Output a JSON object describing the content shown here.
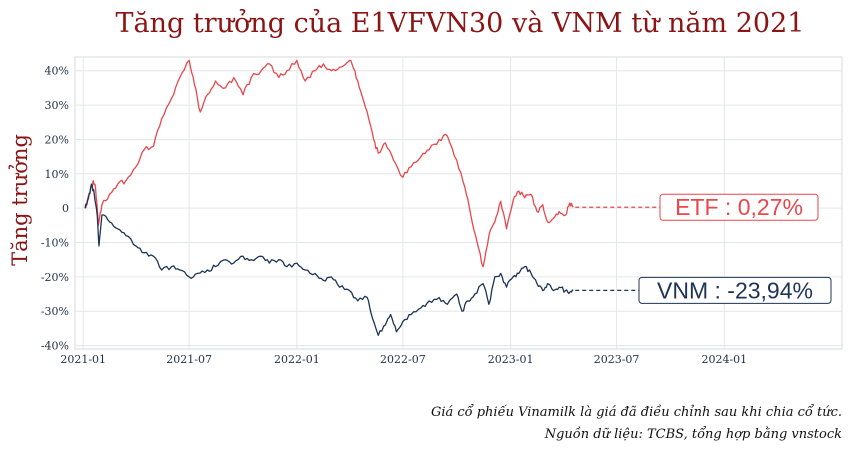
{
  "chart_data": {
    "type": "line",
    "title": "Tăng trưởng của E1VFVN30 và VNM từ năm 2021",
    "xlabel": "",
    "ylabel": "Tăng trưởng",
    "x_ticks": [
      "2021-01",
      "2021-07",
      "2022-01",
      "2022-07",
      "2023-01",
      "2023-07",
      "2024-01"
    ],
    "y_ticks": [
      "-40%",
      "-30%",
      "-20%",
      "-10%",
      "0",
      "10%",
      "20%",
      "30%",
      "40%"
    ],
    "y_tick_values": [
      -40,
      -30,
      -20,
      -10,
      0,
      10,
      20,
      30,
      40
    ],
    "ylim": [
      -41,
      44
    ],
    "xlim": [
      "2020-12-18",
      "2024-07-20"
    ],
    "grid": true,
    "series": [
      {
        "name": "ETF",
        "color": "#e8474b",
        "end_label": "ETF : 0,27%",
        "final_value": 0.27,
        "points": [
          [
            "2021-01-04",
            0
          ],
          [
            "2021-01-12",
            4
          ],
          [
            "2021-01-18",
            8
          ],
          [
            "2021-01-22",
            6
          ],
          [
            "2021-01-27",
            -5
          ],
          [
            "2021-02-02",
            1
          ],
          [
            "2021-02-15",
            4
          ],
          [
            "2021-03-01",
            7
          ],
          [
            "2021-03-15",
            8
          ],
          [
            "2021-04-01",
            12
          ],
          [
            "2021-04-15",
            17
          ],
          [
            "2021-05-01",
            18
          ],
          [
            "2021-05-15",
            26
          ],
          [
            "2021-06-01",
            32
          ],
          [
            "2021-06-15",
            38
          ],
          [
            "2021-07-01",
            43
          ],
          [
            "2021-07-10",
            36
          ],
          [
            "2021-07-20",
            28
          ],
          [
            "2021-08-01",
            33
          ],
          [
            "2021-08-15",
            37
          ],
          [
            "2021-09-01",
            35
          ],
          [
            "2021-09-15",
            38
          ],
          [
            "2021-10-01",
            33
          ],
          [
            "2021-10-15",
            38
          ],
          [
            "2021-11-01",
            40
          ],
          [
            "2021-11-15",
            42
          ],
          [
            "2021-12-01",
            38
          ],
          [
            "2021-12-15",
            40
          ],
          [
            "2022-01-01",
            43
          ],
          [
            "2022-01-15",
            37
          ],
          [
            "2022-02-01",
            40
          ],
          [
            "2022-02-15",
            42
          ],
          [
            "2022-03-01",
            40
          ],
          [
            "2022-03-15",
            41
          ],
          [
            "2022-04-01",
            43
          ],
          [
            "2022-04-10",
            40
          ],
          [
            "2022-04-20",
            34
          ],
          [
            "2022-05-01",
            28
          ],
          [
            "2022-05-12",
            20
          ],
          [
            "2022-05-20",
            16
          ],
          [
            "2022-06-01",
            19
          ],
          [
            "2022-06-15",
            14
          ],
          [
            "2022-07-01",
            9
          ],
          [
            "2022-07-15",
            12
          ],
          [
            "2022-08-01",
            15
          ],
          [
            "2022-08-15",
            17
          ],
          [
            "2022-09-01",
            20
          ],
          [
            "2022-09-15",
            21
          ],
          [
            "2022-10-01",
            14
          ],
          [
            "2022-10-15",
            6
          ],
          [
            "2022-10-25",
            -2
          ],
          [
            "2022-11-05",
            -10
          ],
          [
            "2022-11-15",
            -17
          ],
          [
            "2022-11-25",
            -8
          ],
          [
            "2022-12-05",
            -4
          ],
          [
            "2022-12-15",
            2
          ],
          [
            "2022-12-25",
            -6
          ],
          [
            "2023-01-05",
            2
          ],
          [
            "2023-01-15",
            5
          ],
          [
            "2023-01-25",
            3
          ],
          [
            "2023-02-05",
            4
          ],
          [
            "2023-02-15",
            -1
          ],
          [
            "2023-02-25",
            1
          ],
          [
            "2023-03-05",
            -4
          ],
          [
            "2023-03-15",
            -3
          ],
          [
            "2023-03-25",
            -1
          ],
          [
            "2023-04-05",
            -2
          ],
          [
            "2023-04-12",
            1.5
          ],
          [
            "2023-04-18",
            0.27
          ]
        ]
      },
      {
        "name": "VNM",
        "color": "#1d3455",
        "end_label": "VNM : -23,94%",
        "final_value": -23.94,
        "points": [
          [
            "2021-01-04",
            0
          ],
          [
            "2021-01-10",
            3
          ],
          [
            "2021-01-15",
            7
          ],
          [
            "2021-01-20",
            4
          ],
          [
            "2021-01-25",
            -2
          ],
          [
            "2021-01-28",
            -11
          ],
          [
            "2021-02-02",
            -2
          ],
          [
            "2021-02-15",
            -4
          ],
          [
            "2021-03-01",
            -6
          ],
          [
            "2021-03-15",
            -8
          ],
          [
            "2021-04-01",
            -11
          ],
          [
            "2021-04-15",
            -13
          ],
          [
            "2021-05-01",
            -14
          ],
          [
            "2021-05-15",
            -18
          ],
          [
            "2021-06-01",
            -17
          ],
          [
            "2021-06-15",
            -18
          ],
          [
            "2021-07-01",
            -20
          ],
          [
            "2021-07-15",
            -19
          ],
          [
            "2021-08-01",
            -18
          ],
          [
            "2021-08-15",
            -17
          ],
          [
            "2021-09-01",
            -15
          ],
          [
            "2021-09-15",
            -16
          ],
          [
            "2021-10-01",
            -14
          ],
          [
            "2021-10-15",
            -15
          ],
          [
            "2021-11-01",
            -14
          ],
          [
            "2021-11-15",
            -16
          ],
          [
            "2021-12-01",
            -15
          ],
          [
            "2021-12-15",
            -17
          ],
          [
            "2022-01-01",
            -16
          ],
          [
            "2022-01-15",
            -18
          ],
          [
            "2022-02-01",
            -19
          ],
          [
            "2022-02-15",
            -21
          ],
          [
            "2022-03-01",
            -20
          ],
          [
            "2022-03-15",
            -23
          ],
          [
            "2022-04-01",
            -24
          ],
          [
            "2022-04-15",
            -27
          ],
          [
            "2022-05-01",
            -26
          ],
          [
            "2022-05-10",
            -32
          ],
          [
            "2022-05-20",
            -37
          ],
          [
            "2022-06-01",
            -34
          ],
          [
            "2022-06-10",
            -31
          ],
          [
            "2022-06-20",
            -36
          ],
          [
            "2022-07-01",
            -33
          ],
          [
            "2022-07-15",
            -31
          ],
          [
            "2022-08-01",
            -29
          ],
          [
            "2022-08-15",
            -27
          ],
          [
            "2022-09-01",
            -26
          ],
          [
            "2022-09-15",
            -28
          ],
          [
            "2022-10-01",
            -25
          ],
          [
            "2022-10-10",
            -30
          ],
          [
            "2022-10-20",
            -27
          ],
          [
            "2022-11-01",
            -25
          ],
          [
            "2022-11-15",
            -22
          ],
          [
            "2022-11-25",
            -28
          ],
          [
            "2022-12-05",
            -20
          ],
          [
            "2022-12-15",
            -19
          ],
          [
            "2022-12-25",
            -23
          ],
          [
            "2023-01-05",
            -20
          ],
          [
            "2023-01-15",
            -19
          ],
          [
            "2023-01-25",
            -17
          ],
          [
            "2023-02-05",
            -19
          ],
          [
            "2023-02-15",
            -22
          ],
          [
            "2023-02-25",
            -24
          ],
          [
            "2023-03-05",
            -22
          ],
          [
            "2023-03-15",
            -24
          ],
          [
            "2023-03-25",
            -23
          ],
          [
            "2023-04-05",
            -24
          ],
          [
            "2023-04-12",
            -24.5
          ],
          [
            "2023-04-18",
            -23.94
          ]
        ]
      }
    ]
  },
  "notes": {
    "line1": "Giá cổ phiếu Vinamilk là giá đã điều chỉnh sau khi chia cổ tức.",
    "line2": "Nguồn dữ liệu: TCBS, tổng hợp bằng vnstock"
  }
}
